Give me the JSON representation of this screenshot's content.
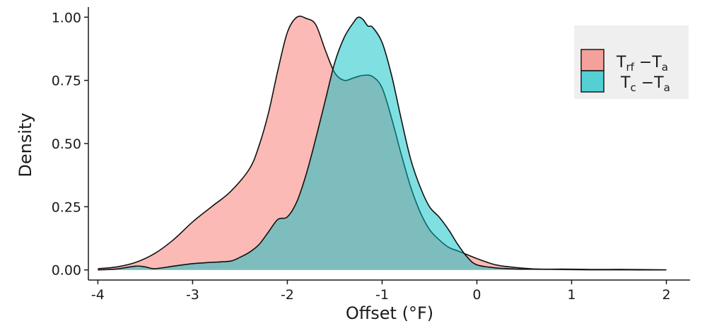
{
  "chart_data": {
    "type": "area",
    "xlabel": "Offset (°F)",
    "ylabel": "Density",
    "xlim": [
      -4.1,
      2.25
    ],
    "ylim": [
      -0.04,
      1.04
    ],
    "x_ticks": [
      -4,
      -3,
      -2,
      -1,
      0,
      1,
      2
    ],
    "x_tick_labels": [
      "-4",
      "-3",
      "-2",
      "-1",
      "0",
      "1",
      "2"
    ],
    "y_ticks": [
      0.0,
      0.25,
      0.5,
      0.75,
      1.0
    ],
    "y_tick_labels": [
      "0.00",
      "0.25",
      "0.50",
      "0.75",
      "1.00"
    ],
    "grid": false,
    "legend_position": "top-right",
    "series": [
      {
        "name": "T_rf − T_a",
        "legend_main": "T",
        "legend_sub": "rf",
        "legend_rest": " −T",
        "legend_sub2": "a",
        "color": "#F8766D",
        "fill_opacity": 0.5,
        "x": [
          -4.0,
          -3.8,
          -3.6,
          -3.4,
          -3.2,
          -3.0,
          -2.8,
          -2.6,
          -2.4,
          -2.3,
          -2.2,
          -2.1,
          -2.0,
          -1.9,
          -1.8,
          -1.7,
          -1.6,
          -1.5,
          -1.4,
          -1.3,
          -1.2,
          -1.1,
          -1.0,
          -0.9,
          -0.8,
          -0.7,
          -0.6,
          -0.5,
          -0.4,
          -0.3,
          -0.2,
          -0.1,
          0.0,
          0.2,
          0.4,
          0.6,
          0.8,
          1.0,
          1.2,
          1.4,
          1.6,
          1.8,
          2.0
        ],
        "y": [
          0.005,
          0.012,
          0.03,
          0.065,
          0.12,
          0.19,
          0.25,
          0.31,
          0.4,
          0.49,
          0.62,
          0.79,
          0.94,
          1.0,
          0.995,
          0.97,
          0.87,
          0.78,
          0.75,
          0.76,
          0.77,
          0.765,
          0.72,
          0.6,
          0.46,
          0.33,
          0.23,
          0.16,
          0.12,
          0.09,
          0.075,
          0.06,
          0.045,
          0.02,
          0.01,
          0.004,
          0.002,
          0.001,
          0.0005,
          0.0003,
          0.0002,
          0.0001,
          0.0
        ]
      },
      {
        "name": "T_c − T_a",
        "legend_main": "T",
        "legend_sub": "c",
        "legend_rest": " −T",
        "legend_sub2": "a",
        "color": "#00BFC4",
        "fill_opacity": 0.5,
        "x": [
          -4.0,
          -3.8,
          -3.6,
          -3.5,
          -3.4,
          -3.2,
          -3.0,
          -2.8,
          -2.6,
          -2.5,
          -2.4,
          -2.3,
          -2.2,
          -2.1,
          -2.0,
          -1.9,
          -1.8,
          -1.7,
          -1.6,
          -1.5,
          -1.4,
          -1.3,
          -1.25,
          -1.2,
          -1.15,
          -1.1,
          -1.0,
          -0.9,
          -0.8,
          -0.7,
          -0.6,
          -0.5,
          -0.4,
          -0.3,
          -0.2,
          -0.1,
          0.0,
          0.2,
          0.4,
          0.6,
          0.8,
          1.0,
          1.2,
          1.4,
          1.6,
          1.8,
          2.0
        ],
        "y": [
          0.0,
          0.004,
          0.015,
          0.012,
          0.005,
          0.015,
          0.025,
          0.03,
          0.035,
          0.05,
          0.07,
          0.1,
          0.15,
          0.2,
          0.21,
          0.27,
          0.38,
          0.52,
          0.67,
          0.82,
          0.92,
          0.98,
          1.0,
          0.99,
          0.965,
          0.96,
          0.9,
          0.77,
          0.6,
          0.44,
          0.33,
          0.25,
          0.21,
          0.16,
          0.1,
          0.05,
          0.02,
          0.008,
          0.004,
          0.003,
          0.003,
          0.003,
          0.002,
          0.002,
          0.002,
          0.001,
          0.0
        ]
      }
    ]
  }
}
